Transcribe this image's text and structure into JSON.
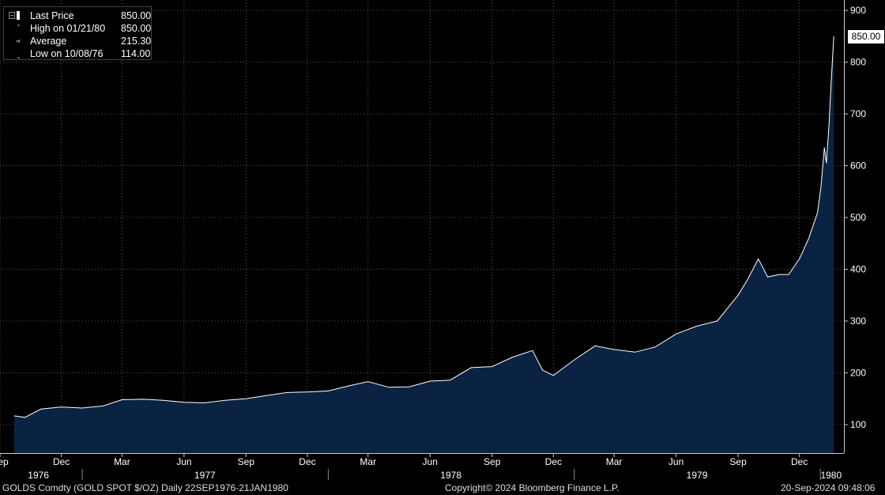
{
  "chart_data": {
    "type": "area",
    "instrument": "GOLDS Comdty (GOLD SPOT $/OZ)",
    "frequency": "Daily",
    "date_range": "22SEP1976-21JAN1980",
    "series": [
      {
        "name": "Last Price",
        "x": [
          "1976-09-22",
          "1976-10-08",
          "1976-11-01",
          "1976-12-01",
          "1977-01-01",
          "1977-02-01",
          "1977-03-01",
          "1977-04-01",
          "1977-05-01",
          "1977-06-01",
          "1977-07-01",
          "1977-08-01",
          "1977-09-01",
          "1977-10-01",
          "1977-11-01",
          "1977-12-01",
          "1978-01-01",
          "1978-02-01",
          "1978-03-01",
          "1978-04-01",
          "1978-05-01",
          "1978-06-01",
          "1978-07-01",
          "1978-08-01",
          "1978-09-01",
          "1978-10-01",
          "1978-10-31",
          "1978-11-15",
          "1978-12-01",
          "1979-01-01",
          "1979-02-01",
          "1979-03-01",
          "1979-04-01",
          "1979-05-01",
          "1979-06-01",
          "1979-07-01",
          "1979-08-01",
          "1979-09-01",
          "1979-09-15",
          "1979-10-01",
          "1979-10-15",
          "1979-11-01",
          "1979-11-15",
          "1979-12-01",
          "1979-12-15",
          "1979-12-28",
          "1980-01-02",
          "1980-01-07",
          "1980-01-10",
          "1980-01-14",
          "1980-01-17",
          "1980-01-18",
          "1980-01-21"
        ],
        "values": [
          117,
          114,
          130,
          134,
          132,
          136,
          148,
          149,
          147,
          143,
          142,
          147,
          150,
          156,
          162,
          163,
          165,
          175,
          183,
          172,
          173,
          184,
          186,
          210,
          212,
          230,
          243,
          205,
          195,
          225,
          252,
          245,
          240,
          250,
          275,
          290,
          300,
          350,
          380,
          420,
          385,
          390,
          390,
          420,
          460,
          510,
          560,
          635,
          605,
          680,
          760,
          780,
          850
        ]
      }
    ],
    "legend": [
      {
        "label": "Last Price",
        "value": "850.00"
      },
      {
        "label": "High on 01/21/80",
        "value": "850.00"
      },
      {
        "label": "Average",
        "value": "215.30"
      },
      {
        "label": "Low on 10/08/76",
        "value": "114.00"
      }
    ],
    "last_value_label": "850.00",
    "y_ticks": [
      100,
      200,
      300,
      400,
      500,
      600,
      700,
      800,
      900
    ],
    "ylim": [
      45,
      920
    ],
    "x_month_ticks": [
      {
        "date": "1976-09-01",
        "label": "Sep"
      },
      {
        "date": "1976-12-01",
        "label": "Dec"
      },
      {
        "date": "1977-03-01",
        "label": "Mar"
      },
      {
        "date": "1977-06-01",
        "label": "Jun"
      },
      {
        "date": "1977-09-01",
        "label": "Sep"
      },
      {
        "date": "1977-12-01",
        "label": "Dec"
      },
      {
        "date": "1978-03-01",
        "label": "Mar"
      },
      {
        "date": "1978-06-01",
        "label": "Jun"
      },
      {
        "date": "1978-09-01",
        "label": "Sep"
      },
      {
        "date": "1978-12-01",
        "label": "Dec"
      },
      {
        "date": "1979-03-01",
        "label": "Mar"
      },
      {
        "date": "1979-06-01",
        "label": "Jun"
      },
      {
        "date": "1979-09-01",
        "label": "Sep"
      },
      {
        "date": "1979-12-01",
        "label": "Dec"
      }
    ],
    "x_year_labels": [
      {
        "label": "1976"
      },
      {
        "label": "1977"
      },
      {
        "label": "1978"
      },
      {
        "label": "1979"
      },
      {
        "label": "1980"
      }
    ],
    "xlim": [
      "1976-09-01",
      "1980-02-05"
    ],
    "grid": true,
    "legend_position": "top-left"
  },
  "footer": {
    "ticker": "GOLDS Comdty (GOLD SPOT $/OZ)  Daily 22SEP1976-21JAN1980",
    "copyright": "Copyright© 2024 Bloomberg Finance L.P.",
    "timestamp": "20-Sep-2024 09:48:06"
  },
  "colors": {
    "background": "#000000",
    "area_fill": "#0b2342",
    "line": "#ffffff",
    "grid": "#5a5a5a",
    "axis_text": "#ffffff"
  }
}
